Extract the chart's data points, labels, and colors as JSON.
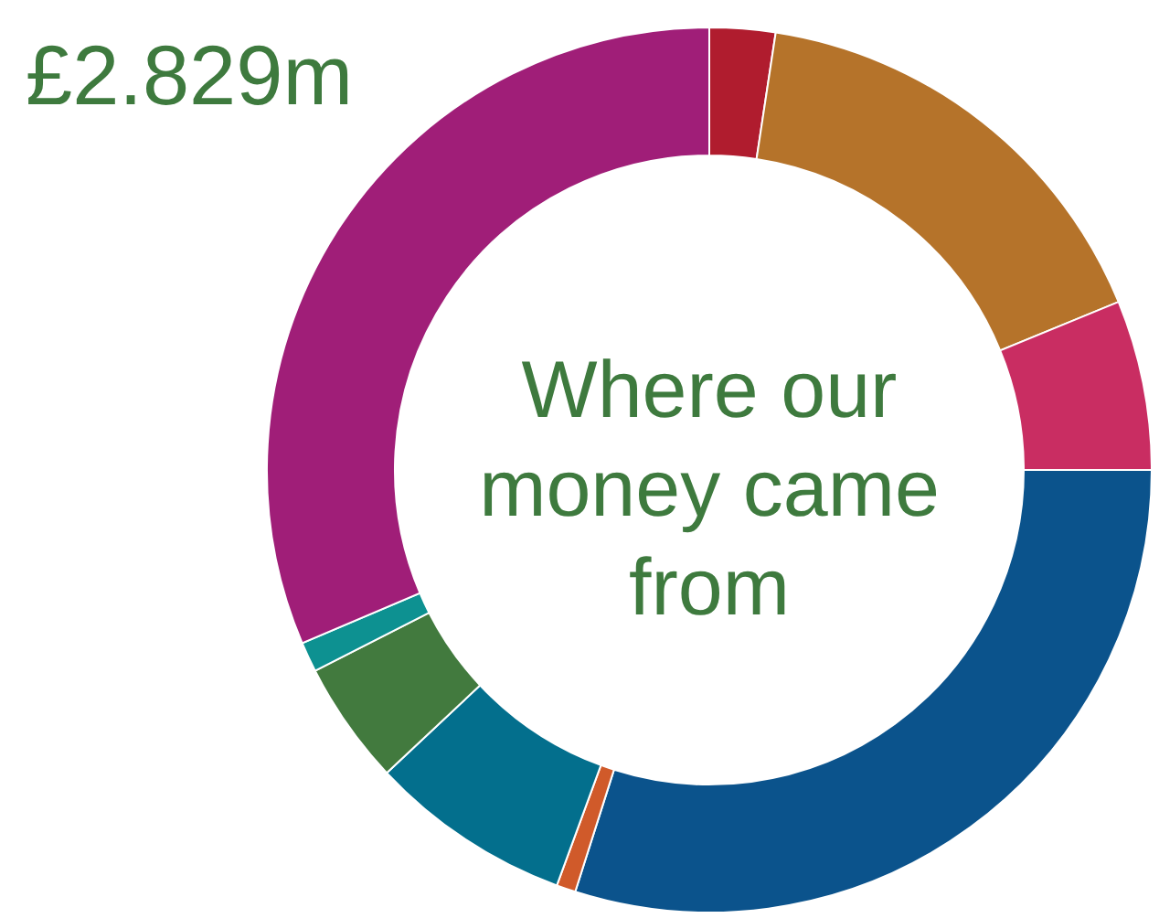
{
  "chart_data": {
    "type": "donut",
    "title": "£2.829m",
    "annotations": [
      "Where our money came from"
    ],
    "categories": [
      null,
      null,
      null,
      null,
      null,
      null,
      null,
      null,
      null
    ],
    "values": [
      2.4,
      16.4,
      6.2,
      29.9,
      0.7,
      7.4,
      4.5,
      1.1,
      31.4
    ],
    "colors": [
      "#b01c2e",
      "#b5732a",
      "#c92d62",
      "#0b538c",
      "#d05a2a",
      "#036f8d",
      "#427a3e",
      "#0d9191",
      "#a01e78"
    ]
  }
}
